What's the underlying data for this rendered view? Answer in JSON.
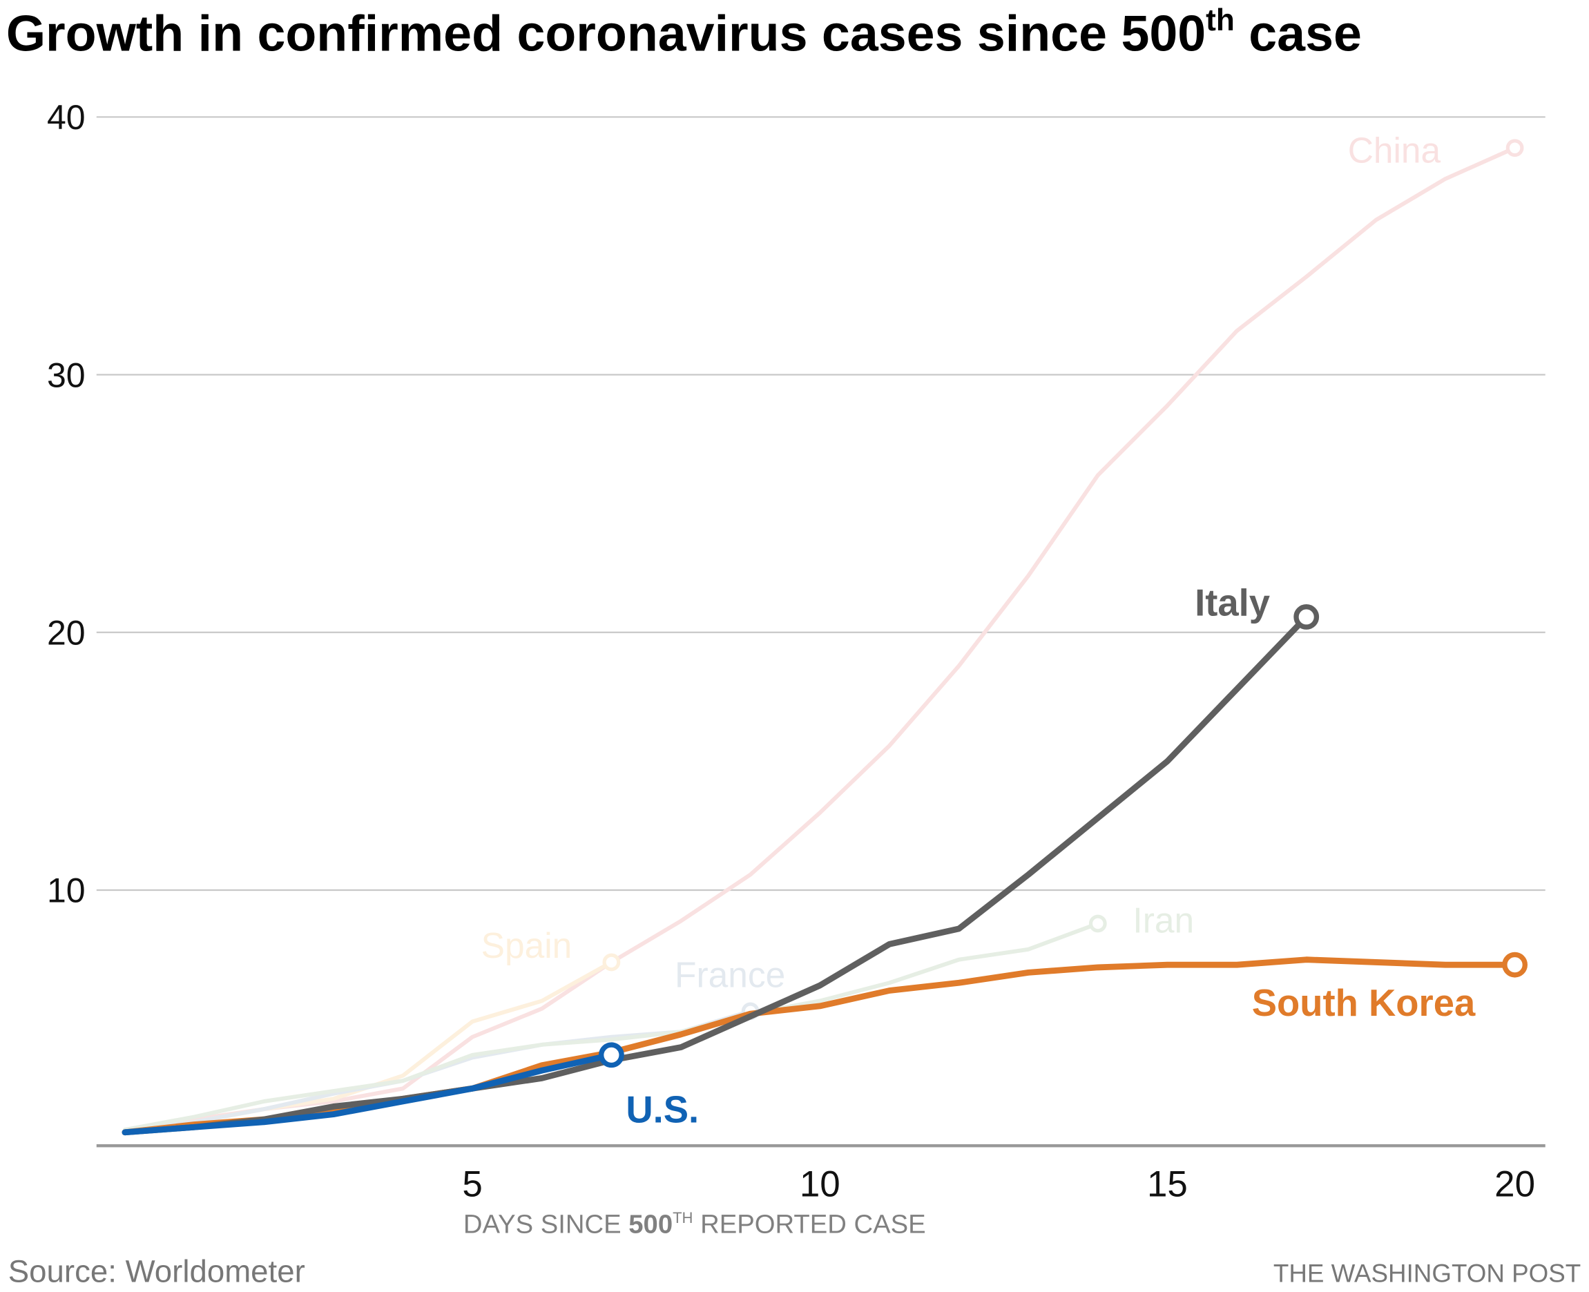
{
  "chart_data": {
    "type": "line",
    "title": "Growth in confirmed coronavirus cases since 500th case",
    "title_parts": {
      "pre": "Growth in confirmed coronavirus cases since ",
      "bold_num": "500",
      "sup": "th",
      "post": " case"
    },
    "xlabel": "DAYS SINCE 500TH REPORTED CASE",
    "xlabel_parts": {
      "pre": "DAYS SINCE ",
      "bold_num": "500",
      "sup": "TH",
      "post": " REPORTED CASE"
    },
    "ylabel": "",
    "xlim": [
      0,
      20
    ],
    "ylim": [
      0,
      40
    ],
    "x_ticks": [
      5,
      10,
      15,
      20
    ],
    "y_ticks": [
      10,
      20,
      30,
      40
    ],
    "x_tick_labels": [
      "5",
      "10",
      "15",
      "20"
    ],
    "y_tick_labels": [
      "10",
      "20",
      "30",
      "40"
    ],
    "grid": "horizontal",
    "series": [
      {
        "name": "China",
        "label": "China",
        "color": "#f9e1e1",
        "emphasis": "muted",
        "x": [
          0,
          1,
          2,
          3,
          4,
          5,
          6,
          7,
          8,
          9,
          10,
          11,
          12,
          13,
          14,
          15,
          16,
          17,
          18,
          19,
          20
        ],
        "values": [
          0.7,
          1.1,
          1.5,
          1.8,
          2.3,
          4.3,
          5.4,
          7.2,
          8.8,
          10.6,
          13.0,
          15.6,
          18.7,
          22.2,
          26.1,
          28.8,
          31.7,
          33.8,
          36.0,
          37.6,
          38.8
        ]
      },
      {
        "name": "Spain",
        "label": "Spain",
        "color": "#fdf0dd",
        "emphasis": "muted",
        "x": [
          0,
          1,
          2,
          3,
          4,
          5,
          6,
          7
        ],
        "values": [
          0.7,
          1.0,
          1.5,
          1.9,
          2.8,
          4.9,
          5.7,
          7.2
        ]
      },
      {
        "name": "France",
        "label": "France",
        "color": "#e3e9ef",
        "emphasis": "muted",
        "x": [
          0,
          1,
          2,
          3,
          4,
          5,
          6,
          7,
          8,
          9
        ],
        "values": [
          0.7,
          1.0,
          1.5,
          2.1,
          2.6,
          3.5,
          4.0,
          4.3,
          4.5,
          5.3
        ]
      },
      {
        "name": "Iran",
        "label": "Iran",
        "color": "#e6eee4",
        "emphasis": "muted",
        "x": [
          0,
          1,
          2,
          3,
          4,
          5,
          6,
          7,
          8,
          9,
          10,
          11,
          12,
          13,
          14
        ],
        "values": [
          0.7,
          1.2,
          1.8,
          2.2,
          2.6,
          3.6,
          4.0,
          4.2,
          4.5,
          5.2,
          5.7,
          6.4,
          7.3,
          7.7,
          8.7
        ]
      },
      {
        "name": "South Korea",
        "label": "South Korea",
        "color": "#e07b2a",
        "emphasis": "highlight",
        "x": [
          0,
          1,
          2,
          3,
          4,
          5,
          6,
          7,
          8,
          9,
          10,
          11,
          12,
          13,
          14,
          15,
          16,
          17,
          18,
          19,
          20
        ],
        "values": [
          0.6,
          0.9,
          1.1,
          1.4,
          1.9,
          2.3,
          3.2,
          3.7,
          4.4,
          5.2,
          5.5,
          6.1,
          6.4,
          6.8,
          7.0,
          7.1,
          7.1,
          7.3,
          7.2,
          7.1,
          7.1
        ]
      },
      {
        "name": "Italy",
        "label": "Italy",
        "color": "#5f5f5f",
        "emphasis": "highlight",
        "x": [
          0,
          1,
          2,
          3,
          4,
          5,
          6,
          7,
          8,
          9,
          10,
          11,
          12,
          13,
          14,
          15,
          16,
          17
        ],
        "values": [
          0.6,
          0.8,
          1.1,
          1.6,
          1.9,
          2.3,
          2.7,
          3.4,
          3.9,
          5.1,
          6.3,
          7.9,
          8.5,
          10.6,
          12.8,
          15.0,
          17.8,
          20.6
        ]
      },
      {
        "name": "U.S.",
        "label": "U.S.",
        "color": "#1062b4",
        "emphasis": "highlight",
        "x": [
          0,
          1,
          2,
          3,
          4,
          5,
          6,
          7
        ],
        "values": [
          0.6,
          0.8,
          1.0,
          1.3,
          1.8,
          2.3,
          3.0,
          3.6
        ]
      }
    ],
    "legend": "direct labels at line ends",
    "source": "Source: Worldometer",
    "credit": "THE WASHINGTON POST"
  }
}
